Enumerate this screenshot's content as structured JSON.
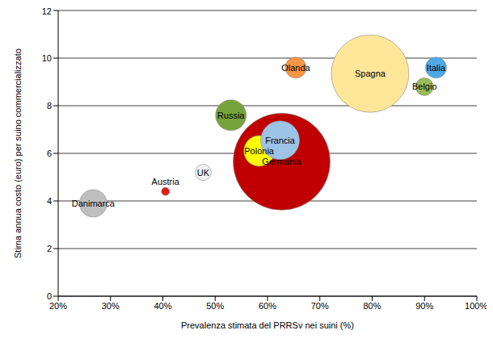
{
  "chart_data": {
    "type": "scatter",
    "marker": "bubble",
    "x_label": "Prevalenza stimata del PRRSv nei suini (%)",
    "y_label": "Stima annua costo (euro) per suino commercializzato",
    "xlim": [
      20,
      100
    ],
    "xticks": [
      {
        "value": 20,
        "label": "20%"
      },
      {
        "value": 30,
        "label": "30%"
      },
      {
        "value": 40,
        "label": "40%"
      },
      {
        "value": 50,
        "label": "50%"
      },
      {
        "value": 60,
        "label": "60%"
      },
      {
        "value": 70,
        "label": "70%"
      },
      {
        "value": 80,
        "label": "80%"
      },
      {
        "value": 90,
        "label": "90%"
      },
      {
        "value": 100,
        "label": "100%"
      }
    ],
    "ylim": [
      0,
      12
    ],
    "yticks": [
      0,
      2,
      4,
      6,
      8,
      10,
      12
    ],
    "grid": true,
    "points": [
      {
        "name": "Germania",
        "x": 62.7,
        "y": 5.65,
        "size": 3600,
        "color": "#c00000"
      },
      {
        "name": "Danimarca",
        "x": 26.7,
        "y": 3.9,
        "size": 289,
        "color": "#bfbfbf"
      },
      {
        "name": "Austria",
        "x": 40.5,
        "y": 4.4,
        "size": 25,
        "color": "#e31a1c"
      },
      {
        "name": "UK",
        "x": 47.7,
        "y": 5.2,
        "size": 100,
        "color": "#f2f2f2"
      },
      {
        "name": "Russia",
        "x": 53,
        "y": 7.6,
        "size": 361,
        "color": "#77a33c"
      },
      {
        "name": "Polonia",
        "x": 58.4,
        "y": 6.1,
        "size": 361,
        "color": "#ffff00"
      },
      {
        "name": "Francia",
        "x": 62.4,
        "y": 6.55,
        "size": 576,
        "color": "#9dc3e6"
      },
      {
        "name": "Olanda",
        "x": 65.4,
        "y": 9.6,
        "size": 169,
        "color": "#f79646"
      },
      {
        "name": "Spagna",
        "x": 79.6,
        "y": 9.35,
        "size": 2304,
        "color": "#ffe699"
      },
      {
        "name": "Belgio",
        "x": 90,
        "y": 8.8,
        "size": 121,
        "color": "#9bbb59"
      },
      {
        "name": "Italia",
        "x": 92.2,
        "y": 9.6,
        "size": 169,
        "color": "#4fa8e8"
      }
    ]
  }
}
